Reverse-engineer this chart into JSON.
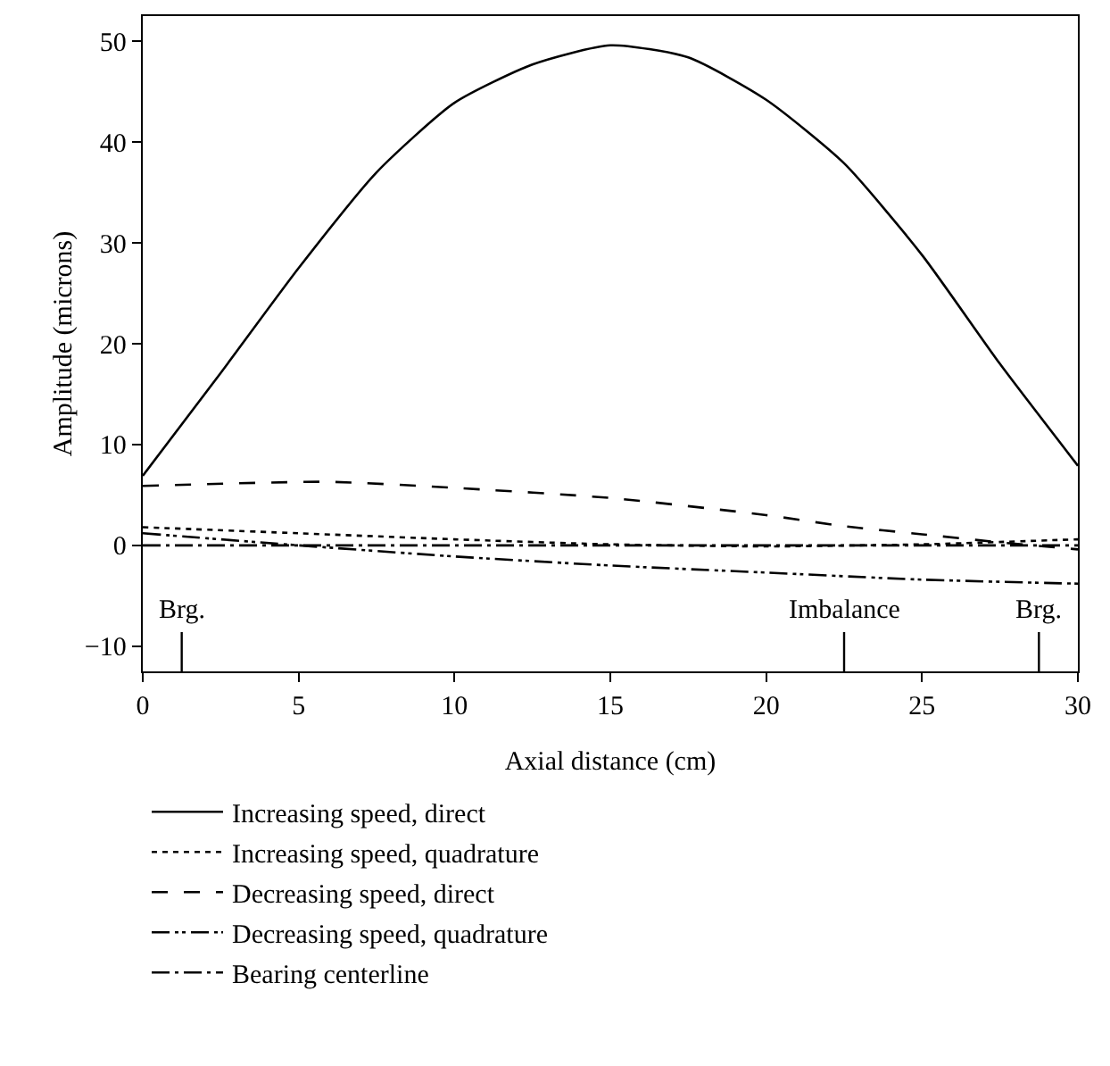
{
  "chart_data": {
    "type": "line",
    "xlabel": "Axial distance (cm)",
    "ylabel": "Amplitude (microns)",
    "xlim": [
      0,
      30
    ],
    "xticks": [
      0,
      5,
      10,
      15,
      20,
      25,
      30
    ],
    "ylim": [
      -12.5,
      52.5
    ],
    "yticks": [
      {
        "value": -10,
        "label": "−10"
      },
      0,
      10,
      20,
      30,
      40,
      50
    ],
    "grid": false,
    "legend": "bottom",
    "marker": "none",
    "series": [
      {
        "name": "Increasing speed, direct",
        "color": "#000000",
        "line_style": "solid",
        "x": [
          0,
          2.5,
          5,
          7.5,
          10,
          12.5,
          15,
          17.5,
          20,
          22.5,
          25,
          27.5,
          30
        ],
        "values": [
          6.9,
          17.1,
          27.5,
          37.0,
          43.9,
          47.7,
          49.6,
          48.4,
          44.2,
          37.9,
          28.8,
          18.0,
          7.9
        ]
      },
      {
        "name": "Increasing speed, quadrature",
        "color": "#000000",
        "line_style": "dotted",
        "x": [
          0,
          5,
          10,
          15,
          20,
          25,
          30
        ],
        "values": [
          1.8,
          1.2,
          0.6,
          0.1,
          -0.1,
          0.1,
          0.6
        ]
      },
      {
        "name": "Decreasing speed, direct",
        "color": "#000000",
        "line_style": "dashed",
        "x": [
          0,
          6,
          10,
          15,
          20,
          22.5,
          25,
          27.5,
          30
        ],
        "values": [
          5.9,
          6.3,
          5.7,
          4.7,
          3.0,
          1.9,
          1.1,
          0.3,
          -0.4
        ]
      },
      {
        "name": "Decreasing speed, quadrature",
        "color": "#000000",
        "line_style": "dashdotdot",
        "x": [
          0,
          5,
          10,
          15,
          20,
          25,
          30
        ],
        "values": [
          1.2,
          0,
          -1.1,
          -2.0,
          -2.7,
          -3.4,
          -3.8
        ]
      },
      {
        "name": "Bearing centerline",
        "color": "#000000",
        "line_style": "dashdot",
        "x": [
          0,
          30
        ],
        "values": [
          0,
          0
        ]
      }
    ],
    "ref_lines": [
      {
        "axis": "x",
        "value": 1.25,
        "label": "Brg."
      },
      {
        "axis": "x",
        "value": 22.5,
        "label": "Imbalance"
      },
      {
        "axis": "x",
        "value": 28.75,
        "label": "Brg."
      }
    ]
  }
}
